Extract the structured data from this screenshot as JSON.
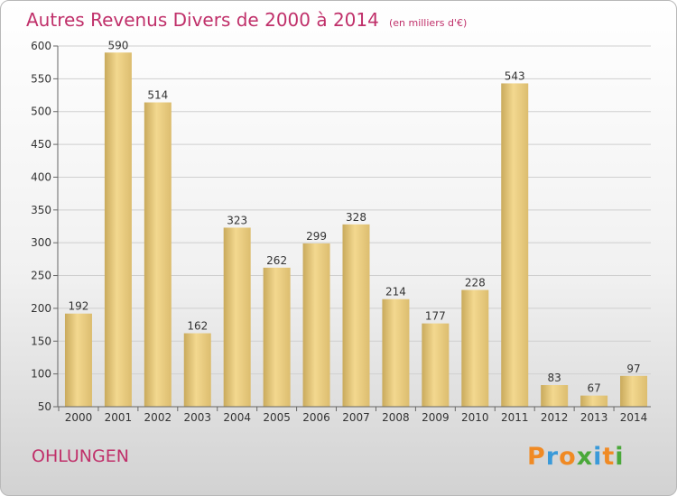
{
  "chart_data": {
    "type": "bar",
    "title": "Autres Revenus Divers de 2000 à 2014",
    "subtitle": "(en milliers d'€)",
    "categories": [
      "2000",
      "2001",
      "2002",
      "2003",
      "2004",
      "2005",
      "2006",
      "2007",
      "2008",
      "2009",
      "2010",
      "2011",
      "2012",
      "2013",
      "2014"
    ],
    "values": [
      192,
      590,
      514,
      162,
      323,
      262,
      299,
      328,
      214,
      177,
      228,
      543,
      83,
      67,
      97
    ],
    "data_labels": [
      "192",
      "590",
      "514",
      "162",
      "323",
      "262",
      "299",
      "328",
      "214",
      "177",
      "228",
      "543",
      "83",
      "67",
      "97"
    ],
    "y_ticks": [
      "50",
      "100",
      "150",
      "200",
      "250",
      "300",
      "350",
      "400",
      "450",
      "500",
      "550",
      "600"
    ],
    "ylim": [
      50,
      600
    ],
    "grid": true,
    "bar_color": "#e6c67d"
  },
  "footer": {
    "commune": "OHLUNGEN",
    "logo": [
      "P",
      "r",
      "o",
      "x",
      "i",
      "t",
      "i"
    ],
    "logo_colors": [
      "#f08a24",
      "#3a9ad9",
      "#f08a24",
      "#4aa83a",
      "#3a9ad9",
      "#f08a24",
      "#4aa83a"
    ]
  }
}
